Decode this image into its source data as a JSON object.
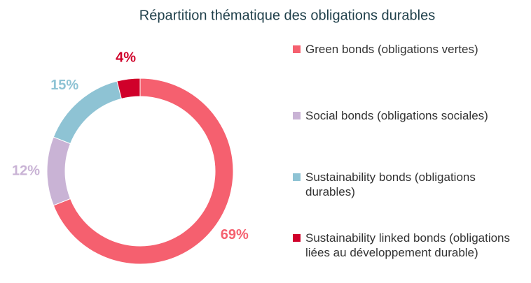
{
  "chart_data": {
    "type": "donut",
    "title": "Répartition thématique des obligations durables",
    "categories": [
      "Green bonds (obligations vertes)",
      "Social bonds (obligations sociales)",
      "Sustainability bonds (obligations durables)",
      "Sustainability linked bonds (obligations liées au développement durable)"
    ],
    "values": [
      69,
      12,
      15,
      4
    ],
    "value_labels": [
      "69%",
      "12%",
      "15%",
      "4%"
    ],
    "colors": [
      "#f5606f",
      "#c9b3d5",
      "#8ec3d4",
      "#d0002a"
    ],
    "legend": "right"
  }
}
